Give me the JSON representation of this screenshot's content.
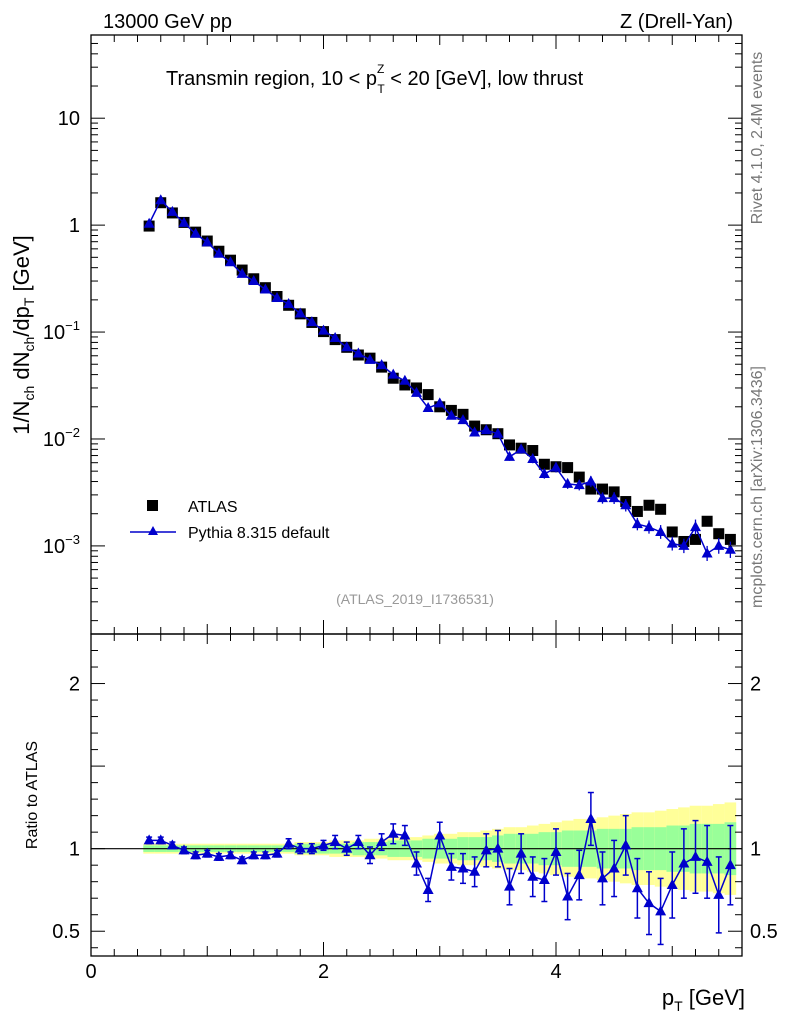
{
  "header": {
    "left": "13000 GeV pp",
    "right": "Z (Drell-Yan)"
  },
  "side_labels": {
    "rivet": "Rivet 4.1.0,  2.4M events",
    "mcplots": "mcplots.cern.ch [arXiv:1306.3436]"
  },
  "chart_data": {
    "type": "scatter",
    "title": "Transmin region, 10 < p_T^Z < 20 [GeV], low thrust",
    "title_parts": {
      "prefix": "Transmin region, 10 < p",
      "sup": "Z",
      "sub": "T",
      "suffix": " < 20 [GeV], low thrust"
    },
    "analysis_id": "(ATLAS_2019_I1736531)",
    "xlabel": "p_T [GeV]",
    "xlabel_parts": {
      "main": "p",
      "sub": "T",
      "unit": " [GeV]"
    },
    "ylabel": "1/N_ch dN_ch/dp_T [GeV]",
    "ylabel_parts": {
      "a": "1/N",
      "a_sub": "ch",
      "b": " dN",
      "b_sub": "ch",
      "c": "/dp",
      "c_sub": "T",
      "d": " [GeV]"
    },
    "ratio_ylabel": "Ratio to ATLAS",
    "xlim": [
      0,
      5.6
    ],
    "ylim": [
      0.00015,
      60
    ],
    "ratio_ylim": [
      0.35,
      2.3
    ],
    "xticks": [
      0,
      2,
      4
    ],
    "xtick_labels": [
      "0",
      "2",
      "4"
    ],
    "yticks_main": [
      0.001,
      0.01,
      0.1,
      1,
      10
    ],
    "ytick_labels_main": [
      {
        "base": "10",
        "exp": "−3"
      },
      {
        "base": "10",
        "exp": "−2"
      },
      {
        "base": "10",
        "exp": "−1"
      },
      {
        "base": "1",
        "exp": ""
      },
      {
        "base": "10",
        "exp": ""
      }
    ],
    "yticks_ratio": [
      0.5,
      1,
      2
    ],
    "ytick_labels_ratio": [
      "0.5",
      "1",
      "2"
    ],
    "legend": [
      "ATLAS",
      "Pythia 8.315 default"
    ],
    "legend_position": "lower-left",
    "colors": {
      "data": "#000000",
      "mc": "#0000cc",
      "band_inner": "#99ff99",
      "band_outer": "#ffff99"
    },
    "series": [
      {
        "name": "ATLAS",
        "marker": "square",
        "x": [
          0.5,
          0.6,
          0.7,
          0.8,
          0.9,
          1.0,
          1.1,
          1.2,
          1.3,
          1.4,
          1.5,
          1.6,
          1.7,
          1.8,
          1.9,
          2.0,
          2.1,
          2.2,
          2.3,
          2.4,
          2.5,
          2.6,
          2.7,
          2.8,
          2.9,
          3.0,
          3.1,
          3.2,
          3.3,
          3.4,
          3.5,
          3.6,
          3.7,
          3.8,
          3.9,
          4.0,
          4.1,
          4.2,
          4.3,
          4.4,
          4.5,
          4.6,
          4.7,
          4.8,
          4.9,
          5.0,
          5.1,
          5.2,
          5.3,
          5.4,
          5.5
        ],
        "y": [
          0.98,
          1.62,
          1.3,
          1.06,
          0.86,
          0.71,
          0.57,
          0.47,
          0.38,
          0.315,
          0.26,
          0.215,
          0.178,
          0.148,
          0.123,
          0.101,
          0.085,
          0.072,
          0.061,
          0.057,
          0.047,
          0.037,
          0.032,
          0.03,
          0.026,
          0.02,
          0.0185,
          0.017,
          0.0132,
          0.0122,
          0.0112,
          0.0088,
          0.0082,
          0.0078,
          0.0058,
          0.0055,
          0.0054,
          0.0044,
          0.0034,
          0.0034,
          0.0032,
          0.0026,
          0.0021,
          0.0024,
          0.0022,
          0.00135,
          0.0011,
          0.00115,
          0.0017,
          0.0013,
          0.00115
        ]
      },
      {
        "name": "Pythia 8.315 default",
        "marker": "triangle",
        "x": [
          0.5,
          0.6,
          0.7,
          0.8,
          0.9,
          1.0,
          1.1,
          1.2,
          1.3,
          1.4,
          1.5,
          1.6,
          1.7,
          1.8,
          1.9,
          2.0,
          2.1,
          2.2,
          2.3,
          2.4,
          2.5,
          2.6,
          2.7,
          2.8,
          2.9,
          3.0,
          3.1,
          3.2,
          3.3,
          3.4,
          3.5,
          3.6,
          3.7,
          3.8,
          3.9,
          4.0,
          4.1,
          4.2,
          4.3,
          4.4,
          4.5,
          4.6,
          4.7,
          4.8,
          4.9,
          5.0,
          5.1,
          5.2,
          5.3,
          5.4,
          5.5
        ],
        "y": [
          1.03,
          1.71,
          1.33,
          1.05,
          0.83,
          0.69,
          0.54,
          0.45,
          0.35,
          0.3,
          0.25,
          0.208,
          0.183,
          0.149,
          0.124,
          0.103,
          0.088,
          0.072,
          0.063,
          0.055,
          0.049,
          0.04,
          0.035,
          0.027,
          0.0195,
          0.0215,
          0.0165,
          0.015,
          0.0115,
          0.0121,
          0.0112,
          0.0068,
          0.008,
          0.0065,
          0.0047,
          0.0054,
          0.0038,
          0.0037,
          0.004,
          0.0028,
          0.0028,
          0.0024,
          0.0016,
          0.0015,
          0.00135,
          0.00105,
          0.001,
          0.0015,
          0.00085,
          0.001,
          0.00092
        ],
        "ratio": [
          1.05,
          1.05,
          1.02,
          0.99,
          0.96,
          0.97,
          0.95,
          0.96,
          0.93,
          0.96,
          0.96,
          0.97,
          1.03,
          1.0,
          1.0,
          1.02,
          1.04,
          1.0,
          1.04,
          0.96,
          1.04,
          1.09,
          1.08,
          0.91,
          0.75,
          1.08,
          0.89,
          0.88,
          0.86,
          0.99,
          1.0,
          0.77,
          0.97,
          0.83,
          0.81,
          0.98,
          0.71,
          0.84,
          1.18,
          0.82,
          0.88,
          1.02,
          0.76,
          0.67,
          0.62,
          0.78,
          0.91,
          0.95,
          0.92,
          0.72,
          0.9
        ],
        "ratio_err": [
          0.02,
          0.02,
          0.02,
          0.02,
          0.02,
          0.02,
          0.02,
          0.02,
          0.02,
          0.02,
          0.02,
          0.02,
          0.03,
          0.03,
          0.03,
          0.03,
          0.04,
          0.04,
          0.04,
          0.05,
          0.05,
          0.06,
          0.06,
          0.07,
          0.07,
          0.08,
          0.08,
          0.09,
          0.09,
          0.1,
          0.11,
          0.11,
          0.12,
          0.12,
          0.13,
          0.14,
          0.14,
          0.15,
          0.16,
          0.16,
          0.17,
          0.18,
          0.18,
          0.19,
          0.2,
          0.2,
          0.21,
          0.22,
          0.22,
          0.23,
          0.24
        ]
      }
    ],
    "ratio_band": {
      "x": [
        0.5,
        0.6,
        0.7,
        0.8,
        0.9,
        1.0,
        1.1,
        1.2,
        1.3,
        1.4,
        1.5,
        1.6,
        1.7,
        1.8,
        1.9,
        2.0,
        2.1,
        2.2,
        2.3,
        2.4,
        2.5,
        2.6,
        2.7,
        2.8,
        2.9,
        3.0,
        3.1,
        3.2,
        3.3,
        3.4,
        3.5,
        3.6,
        3.7,
        3.8,
        3.9,
        4.0,
        4.1,
        4.2,
        4.3,
        4.4,
        4.5,
        4.6,
        4.7,
        4.8,
        4.9,
        5.0,
        5.1,
        5.2,
        5.3,
        5.4,
        5.5
      ],
      "inner": [
        0.02,
        0.02,
        0.02,
        0.02,
        0.02,
        0.02,
        0.02,
        0.02,
        0.02,
        0.02,
        0.02,
        0.02,
        0.02,
        0.03,
        0.03,
        0.03,
        0.03,
        0.03,
        0.04,
        0.04,
        0.04,
        0.05,
        0.05,
        0.05,
        0.06,
        0.06,
        0.06,
        0.07,
        0.07,
        0.07,
        0.08,
        0.09,
        0.09,
        0.09,
        0.1,
        0.1,
        0.11,
        0.11,
        0.11,
        0.12,
        0.12,
        0.12,
        0.13,
        0.13,
        0.13,
        0.14,
        0.14,
        0.15,
        0.15,
        0.15,
        0.16
      ],
      "outer": [
        0.03,
        0.03,
        0.03,
        0.03,
        0.03,
        0.03,
        0.03,
        0.03,
        0.03,
        0.03,
        0.03,
        0.03,
        0.03,
        0.04,
        0.04,
        0.04,
        0.05,
        0.05,
        0.05,
        0.06,
        0.06,
        0.07,
        0.07,
        0.07,
        0.08,
        0.09,
        0.09,
        0.1,
        0.1,
        0.11,
        0.12,
        0.13,
        0.13,
        0.14,
        0.15,
        0.16,
        0.17,
        0.18,
        0.18,
        0.19,
        0.2,
        0.21,
        0.22,
        0.22,
        0.23,
        0.24,
        0.25,
        0.26,
        0.26,
        0.27,
        0.28
      ]
    }
  }
}
